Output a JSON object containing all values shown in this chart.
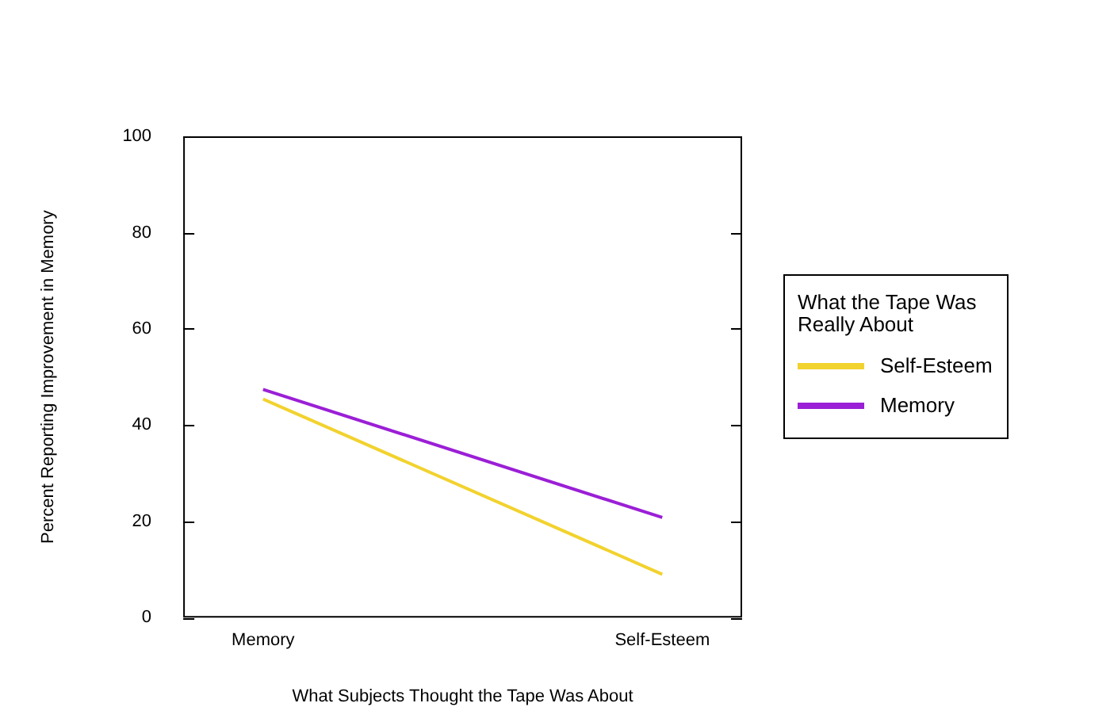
{
  "chart_data": {
    "type": "line",
    "xlabel": "What Subjects Thought the Tape Was About",
    "ylabel": "Percent Reporting Improvement in Memory",
    "legend_title": "What the Tape Was Really About",
    "categories": [
      "Memory",
      "Self-Esteem"
    ],
    "series": [
      {
        "name": "Self-Esteem",
        "color": "#f2d22e",
        "values": [
          45.4,
          9.0
        ]
      },
      {
        "name": "Memory",
        "color": "#9b1fd6",
        "values": [
          47.4,
          20.8
        ]
      }
    ],
    "ylim": [
      0,
      100
    ],
    "yticks": [
      0,
      20,
      40,
      60,
      80,
      100
    ],
    "grid": false,
    "legend": "right",
    "marker": "none",
    "line_style": "solid"
  }
}
